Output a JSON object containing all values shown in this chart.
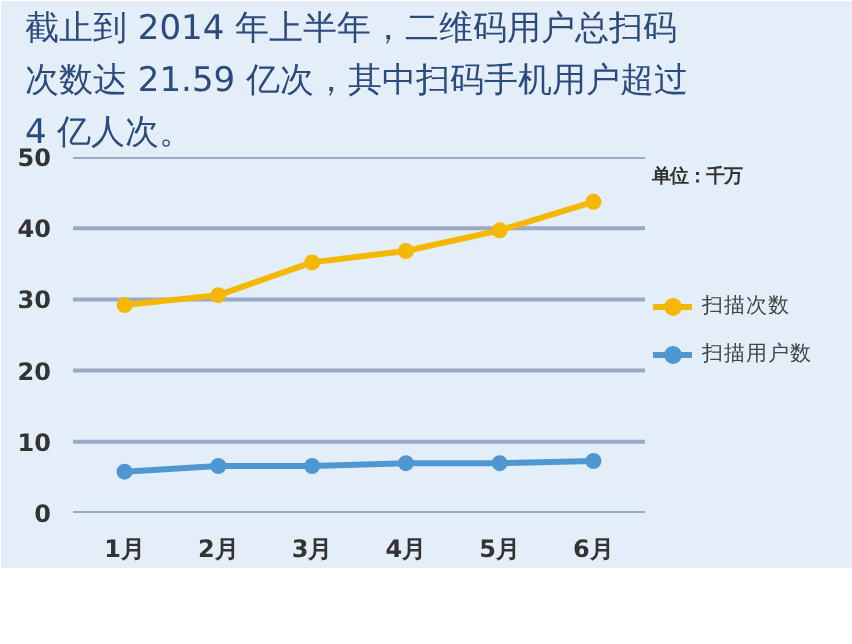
{
  "chart_data": {
    "type": "line",
    "title": "截止到 2014 年上半年，二维码用户总扫码次数达 21.59 亿次，其中扫码手机用户超过 4 亿人次。",
    "annotations": [
      "单位：千万"
    ],
    "categories": [
      "1月",
      "2月",
      "3月",
      "4月",
      "5月",
      "6月"
    ],
    "series": [
      {
        "name": "扫描次数",
        "color": "#f5b800",
        "values": [
          29.2,
          30.6,
          35.2,
          36.8,
          39.7,
          43.7
        ]
      },
      {
        "name": "扫描用户数",
        "color": "#4f97d1",
        "values": [
          5.8,
          6.6,
          6.6,
          7.0,
          7.0,
          7.3
        ]
      }
    ],
    "ylim": [
      0,
      50
    ],
    "yticks": [
      0,
      10,
      20,
      30,
      40,
      50
    ],
    "grid": "y",
    "legend": "right",
    "marker": "circle",
    "line_style": "solid"
  }
}
